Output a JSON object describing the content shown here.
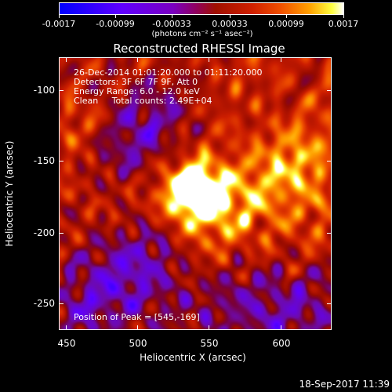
{
  "colorbar": {
    "tick_labels": [
      "-0.0017",
      "-0.00099",
      "-0.00033",
      "0.00033",
      "0.00099",
      "0.0017"
    ],
    "unit_label": "(photons cm⁻² s⁻¹ asec⁻²)"
  },
  "title": "Reconstructed RHESSI Image",
  "annotations": {
    "time_range": "26-Dec-2014 01:01:20.000 to 01:11:20.000",
    "detectors": "Detectors: 3F 6F 7F 9F, Att 0",
    "energy_range": "Energy Range: 6.0 - 12.0 keV",
    "clean_counts": "Clean     Total counts: 2.49E+04",
    "peak_position": "Position of Peak = [545,-169]"
  },
  "axes": {
    "xlabel": "Heliocentric X (arcsec)",
    "ylabel": "Heliocentric Y (arcsec)",
    "x_tick_labels": [
      "450",
      "500",
      "550",
      "600"
    ],
    "y_tick_labels": [
      "-100",
      "-150",
      "-200",
      "-250"
    ],
    "x_range": [
      445,
      638
    ],
    "y_range": [
      -269,
      -76
    ]
  },
  "footer": {
    "timestamp": "18-Sep-2017 11:39"
  },
  "colors": {
    "background": "#000000",
    "text": "#ffffff"
  }
}
